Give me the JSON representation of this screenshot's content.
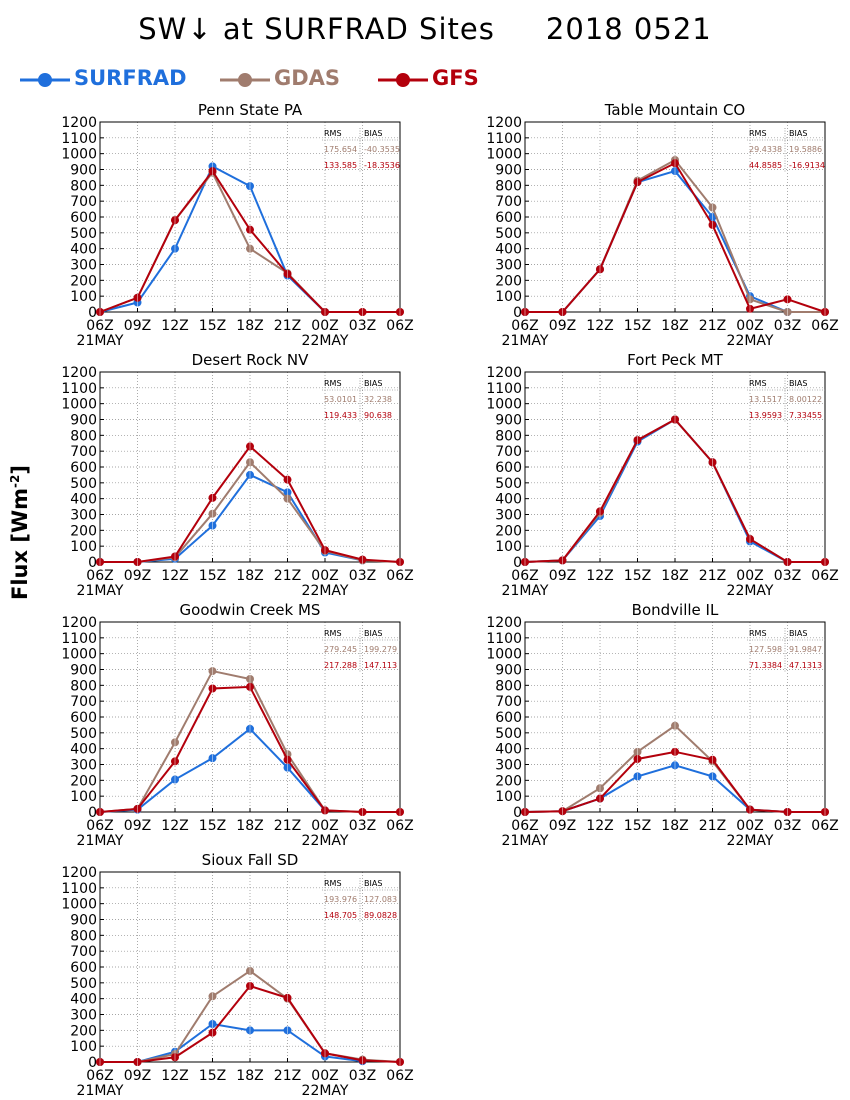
{
  "title": "SW↓ at SURFRAD Sites     2018 0521",
  "legend": [
    {
      "name": "SURFRAD",
      "color": "#1f6fdc"
    },
    {
      "name": "GDAS",
      "color": "#a07c6e"
    },
    {
      "name": "GFS",
      "color": "#b3000c"
    }
  ],
  "ylabel": "Flux [Wm",
  "ylabel_sup": "-2",
  "colors": {
    "surfrad": "#1f6fdc",
    "gdas": "#a07c6e",
    "gfs": "#b3000c"
  },
  "stats_header": {
    "rms": "RMS",
    "bias": "BIAS"
  },
  "chart_data": [
    {
      "type": "line",
      "title": "Penn State PA",
      "categories": [
        "06Z",
        "09Z",
        "12Z",
        "15Z",
        "18Z",
        "21Z",
        "00Z",
        "03Z",
        "06Z"
      ],
      "date_labels": [
        "21MAY",
        "22MAY"
      ],
      "ylim": [
        0,
        1200
      ],
      "yticks": [
        0,
        100,
        200,
        300,
        400,
        500,
        600,
        700,
        800,
        900,
        1000,
        1100,
        1200
      ],
      "grid": true,
      "series": [
        {
          "name": "SURFRAD",
          "values": [
            0,
            60,
            400,
            920,
            795,
            230,
            0,
            null,
            null
          ]
        },
        {
          "name": "GDAS",
          "values": [
            0,
            90,
            580,
            880,
            400,
            245,
            0,
            0,
            0
          ]
        },
        {
          "name": "GFS",
          "values": [
            0,
            90,
            580,
            890,
            520,
            240,
            0,
            0,
            0
          ]
        }
      ],
      "stats": {
        "gdas": [
          "175.654",
          "-40.3535"
        ],
        "gfs": [
          "133.585",
          "-18.3536"
        ]
      }
    },
    {
      "type": "line",
      "title": "Table Mountain CO",
      "categories": [
        "06Z",
        "09Z",
        "12Z",
        "15Z",
        "18Z",
        "21Z",
        "00Z",
        "03Z",
        "06Z"
      ],
      "date_labels": [
        "21MAY",
        "22MAY"
      ],
      "ylim": [
        0,
        1200
      ],
      "yticks": [
        0,
        100,
        200,
        300,
        400,
        500,
        600,
        700,
        800,
        900,
        1000,
        1100,
        1200
      ],
      "grid": true,
      "series": [
        {
          "name": "SURFRAD",
          "values": [
            0,
            0,
            270,
            820,
            890,
            600,
            100,
            0,
            null
          ]
        },
        {
          "name": "GDAS",
          "values": [
            0,
            0,
            270,
            830,
            960,
            660,
            80,
            0,
            0
          ]
        },
        {
          "name": "GFS",
          "values": [
            0,
            0,
            270,
            820,
            940,
            550,
            20,
            80,
            0
          ]
        }
      ],
      "stats": {
        "gdas": [
          "29.4338",
          "19.5886"
        ],
        "gfs": [
          "44.8585",
          "-16.9134"
        ]
      }
    },
    {
      "type": "line",
      "title": "Desert Rock NV",
      "categories": [
        "06Z",
        "09Z",
        "12Z",
        "15Z",
        "18Z",
        "21Z",
        "00Z",
        "03Z",
        "06Z"
      ],
      "date_labels": [
        "21MAY",
        "22MAY"
      ],
      "ylim": [
        0,
        1200
      ],
      "yticks": [
        0,
        100,
        200,
        300,
        400,
        500,
        600,
        700,
        800,
        900,
        1000,
        1100,
        1200
      ],
      "grid": true,
      "series": [
        {
          "name": "SURFRAD",
          "values": [
            0,
            0,
            20,
            230,
            550,
            440,
            60,
            10,
            null
          ]
        },
        {
          "name": "GDAS",
          "values": [
            0,
            0,
            30,
            305,
            630,
            400,
            70,
            10,
            0
          ]
        },
        {
          "name": "GFS",
          "values": [
            0,
            0,
            35,
            405,
            730,
            520,
            75,
            15,
            0
          ]
        }
      ],
      "stats": {
        "gdas": [
          "53.0101",
          "32.238"
        ],
        "gfs": [
          "119.433",
          "90.638"
        ]
      }
    },
    {
      "type": "line",
      "title": "Fort Peck MT",
      "categories": [
        "06Z",
        "09Z",
        "12Z",
        "15Z",
        "18Z",
        "21Z",
        "00Z",
        "03Z",
        "06Z"
      ],
      "date_labels": [
        "21MAY",
        "22MAY"
      ],
      "ylim": [
        0,
        1200
      ],
      "yticks": [
        0,
        100,
        200,
        300,
        400,
        500,
        600,
        700,
        800,
        900,
        1000,
        1100,
        1200
      ],
      "grid": true,
      "series": [
        {
          "name": "SURFRAD",
          "values": [
            0,
            10,
            290,
            760,
            900,
            630,
            130,
            0,
            null
          ]
        },
        {
          "name": "GDAS",
          "values": [
            0,
            10,
            310,
            770,
            900,
            630,
            145,
            0,
            0
          ]
        },
        {
          "name": "GFS",
          "values": [
            0,
            10,
            320,
            770,
            900,
            630,
            145,
            0,
            0
          ]
        }
      ],
      "stats": {
        "gdas": [
          "13.1517",
          "8.00122"
        ],
        "gfs": [
          "13.9593",
          "7.33455"
        ]
      }
    },
    {
      "type": "line",
      "title": "Goodwin Creek MS",
      "categories": [
        "06Z",
        "09Z",
        "12Z",
        "15Z",
        "18Z",
        "21Z",
        "00Z",
        "03Z",
        "06Z"
      ],
      "date_labels": [
        "21MAY",
        "22MAY"
      ],
      "ylim": [
        0,
        1200
      ],
      "yticks": [
        0,
        100,
        200,
        300,
        400,
        500,
        600,
        700,
        800,
        900,
        1000,
        1100,
        1200
      ],
      "grid": true,
      "series": [
        {
          "name": "SURFRAD",
          "values": [
            0,
            15,
            205,
            340,
            525,
            280,
            10,
            null,
            null
          ]
        },
        {
          "name": "GDAS",
          "values": [
            0,
            20,
            440,
            890,
            840,
            365,
            10,
            0,
            0
          ]
        },
        {
          "name": "GFS",
          "values": [
            0,
            20,
            320,
            780,
            790,
            330,
            10,
            0,
            0
          ]
        }
      ],
      "stats": {
        "gdas": [
          "279.245",
          "199.279"
        ],
        "gfs": [
          "217.288",
          "147.113"
        ]
      }
    },
    {
      "type": "line",
      "title": "Bondville IL",
      "categories": [
        "06Z",
        "09Z",
        "12Z",
        "15Z",
        "18Z",
        "21Z",
        "00Z",
        "03Z",
        "06Z"
      ],
      "date_labels": [
        "21MAY",
        "22MAY"
      ],
      "ylim": [
        0,
        1200
      ],
      "yticks": [
        0,
        100,
        200,
        300,
        400,
        500,
        600,
        700,
        800,
        900,
        1000,
        1100,
        1200
      ],
      "grid": true,
      "series": [
        {
          "name": "SURFRAD",
          "values": [
            0,
            5,
            85,
            225,
            295,
            225,
            15,
            0,
            null
          ]
        },
        {
          "name": "GDAS",
          "values": [
            0,
            5,
            150,
            380,
            545,
            320,
            15,
            0,
            0
          ]
        },
        {
          "name": "GFS",
          "values": [
            0,
            5,
            85,
            335,
            380,
            330,
            15,
            0,
            0
          ]
        }
      ],
      "stats": {
        "gdas": [
          "127.598",
          "91.9847"
        ],
        "gfs": [
          "71.3384",
          "47.1313"
        ]
      }
    },
    {
      "type": "line",
      "title": "Sioux Fall SD",
      "categories": [
        "06Z",
        "09Z",
        "12Z",
        "15Z",
        "18Z",
        "21Z",
        "00Z",
        "03Z",
        "06Z"
      ],
      "date_labels": [
        "21MAY",
        "22MAY"
      ],
      "ylim": [
        0,
        1200
      ],
      "yticks": [
        0,
        100,
        200,
        300,
        400,
        500,
        600,
        700,
        800,
        900,
        1000,
        1100,
        1200
      ],
      "grid": true,
      "series": [
        {
          "name": "SURFRAD",
          "values": [
            0,
            0,
            65,
            240,
            200,
            200,
            35,
            5,
            null
          ]
        },
        {
          "name": "GDAS",
          "values": [
            0,
            0,
            50,
            415,
            575,
            400,
            55,
            15,
            0
          ]
        },
        {
          "name": "GFS",
          "values": [
            0,
            0,
            30,
            185,
            480,
            405,
            55,
            10,
            0
          ]
        }
      ],
      "stats": {
        "gdas": [
          "193.976",
          "127.083"
        ],
        "gfs": [
          "148.705",
          "89.0828"
        ]
      }
    }
  ]
}
